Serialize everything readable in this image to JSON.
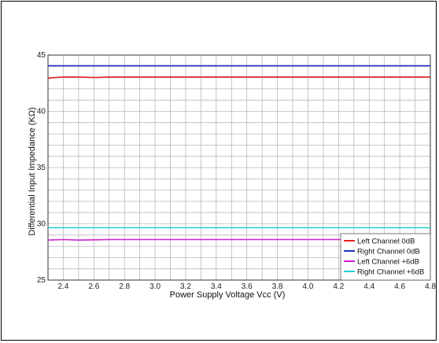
{
  "chart_data": {
    "type": "line",
    "title": "",
    "xlabel": "Power Supply Voltage Vcc (V)",
    "ylabel": "Differential Input Impedance (KΩ)",
    "xlim": [
      2.3,
      4.8
    ],
    "ylim": [
      25,
      45
    ],
    "x_ticks": [
      "2.4",
      "2.6",
      "2.8",
      "3.0",
      "3.2",
      "3.4",
      "3.6",
      "3.8",
      "4.0",
      "4.2",
      "4.4",
      "4.6",
      "4.8"
    ],
    "y_ticks": [
      "25",
      "30",
      "35",
      "40",
      "45"
    ],
    "grid": true,
    "legend_position": "bottom-right",
    "series": [
      {
        "name": "Left Channel 0dB",
        "color": "#e02020",
        "x": [
          2.3,
          2.35,
          2.4,
          2.5,
          2.6,
          2.7,
          2.8,
          3.0,
          3.5,
          4.0,
          4.5,
          4.8
        ],
        "values": [
          42.95,
          43.0,
          43.05,
          43.05,
          43.0,
          43.05,
          43.05,
          43.05,
          43.05,
          43.05,
          43.05,
          43.05
        ]
      },
      {
        "name": "Right Channel 0dB",
        "color": "#2030c0",
        "x": [
          2.3,
          4.8
        ],
        "values": [
          44.05,
          44.05
        ]
      },
      {
        "name": "Left Channel +6dB",
        "color": "#d020d0",
        "x": [
          2.3,
          2.4,
          2.5,
          2.7,
          2.9,
          3.5,
          4.0,
          4.5,
          4.8
        ],
        "values": [
          28.55,
          28.6,
          28.55,
          28.6,
          28.6,
          28.6,
          28.6,
          28.6,
          28.6
        ]
      },
      {
        "name": "Right Channel +6dB",
        "color": "#20d0d0",
        "x": [
          2.3,
          4.8
        ],
        "values": [
          29.65,
          29.65
        ]
      }
    ]
  }
}
